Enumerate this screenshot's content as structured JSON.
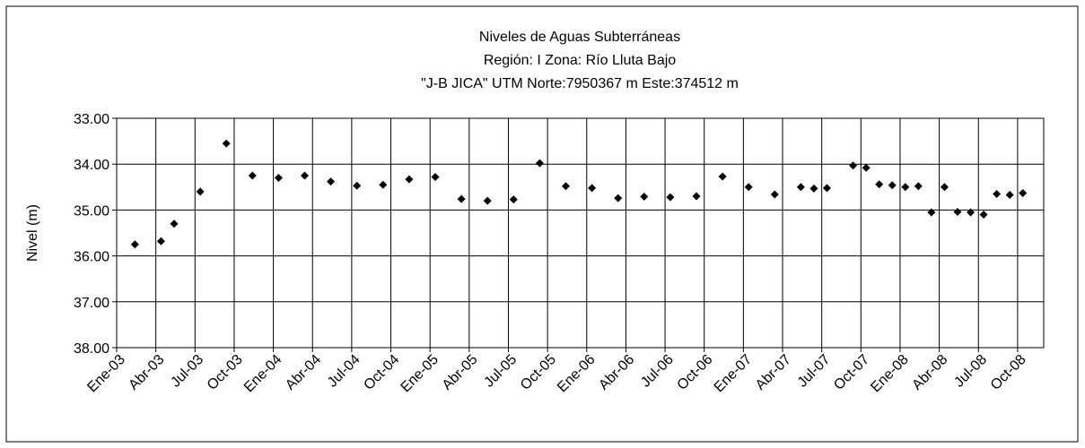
{
  "chart_data": {
    "type": "scatter",
    "title": [
      "Niveles de Aguas Subterráneas",
      "Región: I  Zona: Río Lluta Bajo",
      "\"J-B JICA\"  UTM Norte:7950367 m   Este:374512 m"
    ],
    "ylabel": "Nivel (m)",
    "y_inverted": true,
    "grid": true,
    "color": "#000000",
    "xlim": [
      "2003-01",
      "2008-11"
    ],
    "xticks": [
      {
        "value": "2003-01",
        "label": "Ene-03"
      },
      {
        "value": "2003-04",
        "label": "Abr-03"
      },
      {
        "value": "2003-07",
        "label": "Jul-03"
      },
      {
        "value": "2003-10",
        "label": "Oct-03"
      },
      {
        "value": "2004-01",
        "label": "Ene-04"
      },
      {
        "value": "2004-04",
        "label": "Abr-04"
      },
      {
        "value": "2004-07",
        "label": "Jul-04"
      },
      {
        "value": "2004-10",
        "label": "Oct-04"
      },
      {
        "value": "2005-01",
        "label": "Ene-05"
      },
      {
        "value": "2005-04",
        "label": "Abr-05"
      },
      {
        "value": "2005-07",
        "label": "Jul-05"
      },
      {
        "value": "2005-10",
        "label": "Oct-05"
      },
      {
        "value": "2006-01",
        "label": "Ene-06"
      },
      {
        "value": "2006-04",
        "label": "Abr-06"
      },
      {
        "value": "2006-07",
        "label": "Jul-06"
      },
      {
        "value": "2006-10",
        "label": "Oct-06"
      },
      {
        "value": "2007-01",
        "label": "Ene-07"
      },
      {
        "value": "2007-04",
        "label": "Abr-07"
      },
      {
        "value": "2007-07",
        "label": "Jul-07"
      },
      {
        "value": "2007-10",
        "label": "Oct-07"
      },
      {
        "value": "2008-01",
        "label": "Ene-08"
      },
      {
        "value": "2008-04",
        "label": "Abr-08"
      },
      {
        "value": "2008-07",
        "label": "Jul-08"
      },
      {
        "value": "2008-10",
        "label": "Oct-08"
      }
    ],
    "ylim": [
      33,
      38
    ],
    "yticks": [
      {
        "value": 33,
        "label": "33.00"
      },
      {
        "value": 34,
        "label": "34.00"
      },
      {
        "value": 35,
        "label": "35.00"
      },
      {
        "value": 36,
        "label": "36.00"
      },
      {
        "value": 37,
        "label": "37.00"
      },
      {
        "value": 38,
        "label": "38.00"
      }
    ],
    "x": [
      "2003-02",
      "2003-04",
      "2003-05",
      "2003-07",
      "2003-09",
      "2003-11",
      "2004-01",
      "2004-03",
      "2004-05",
      "2004-07",
      "2004-09",
      "2004-11",
      "2005-01",
      "2005-03",
      "2005-05",
      "2005-07",
      "2005-09",
      "2005-11",
      "2006-01",
      "2006-03",
      "2006-05",
      "2006-07",
      "2006-09",
      "2006-11",
      "2007-01",
      "2007-03",
      "2007-05",
      "2007-06",
      "2007-07",
      "2007-09",
      "2007-10",
      "2007-11",
      "2007-12",
      "2008-01",
      "2008-02",
      "2008-03",
      "2008-04",
      "2008-05",
      "2008-06",
      "2008-07",
      "2008-08",
      "2008-09",
      "2008-10"
    ],
    "values": [
      35.75,
      35.68,
      35.3,
      34.6,
      33.55,
      34.25,
      34.3,
      34.25,
      34.38,
      34.47,
      34.45,
      34.33,
      34.28,
      34.76,
      34.8,
      34.77,
      33.98,
      34.48,
      34.52,
      34.74,
      34.71,
      34.72,
      34.7,
      34.27,
      34.5,
      34.66,
      34.5,
      34.53,
      34.52,
      34.03,
      34.08,
      34.44,
      34.46,
      34.5,
      34.48,
      35.05,
      34.5,
      35.04,
      35.05,
      35.1,
      34.65,
      34.67,
      34.63
    ]
  }
}
